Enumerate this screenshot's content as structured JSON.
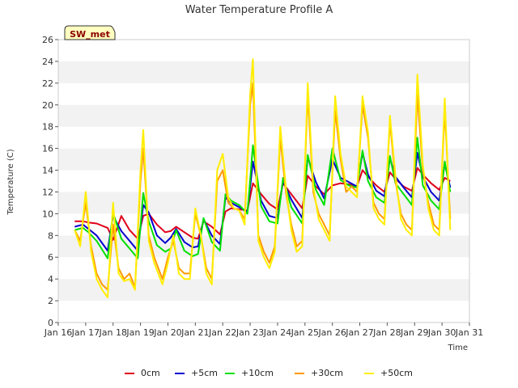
{
  "chart_data": {
    "type": "line",
    "title": "Water Temperature Profile A",
    "xlabel": "Time",
    "ylabel": "Temperature (C)",
    "badge": "SW_met",
    "xlim": [
      16,
      31
    ],
    "ylim": [
      0,
      26
    ],
    "x_ticks": [
      16,
      17,
      18,
      19,
      20,
      21,
      22,
      23,
      24,
      25,
      26,
      27,
      28,
      29,
      30,
      31
    ],
    "x_tick_labels": [
      "Jan 16",
      "Jan 17",
      "Jan 18",
      "Jan 19",
      "Jan 20",
      "Jan 21",
      "Jan 22",
      "Jan 23",
      "Jan 24",
      "Jan 25",
      "Jan 26",
      "Jan 27",
      "Jan 28",
      "Jan 29",
      "Jan 30",
      "Jan 31"
    ],
    "y_ticks": [
      0,
      2,
      4,
      6,
      8,
      10,
      12,
      14,
      16,
      18,
      20,
      22,
      24,
      26
    ],
    "grid": "horizontal alternating bands",
    "legend_position": "bottom",
    "series": [
      {
        "name": "0cm",
        "color": "#e0001a",
        "x": [
          16.6,
          16.9,
          17.1,
          17.4,
          17.8,
          18.0,
          18.3,
          18.6,
          18.9,
          19.1,
          19.3,
          19.6,
          19.9,
          20.1,
          20.3,
          20.6,
          20.9,
          21.1,
          21.3,
          21.6,
          21.9,
          22.1,
          22.3,
          22.6,
          22.9,
          23.1,
          23.4,
          23.7,
          24.0,
          24.2,
          24.5,
          24.9,
          25.1,
          25.4,
          25.7,
          26.0,
          26.3,
          26.6,
          26.9,
          27.1,
          27.3,
          27.6,
          27.9,
          28.1,
          28.3,
          28.6,
          28.9,
          29.1,
          29.3,
          29.6,
          29.9,
          30.1,
          30.3
        ],
        "y": [
          9.3,
          9.3,
          9.2,
          9.1,
          8.7,
          7.6,
          9.8,
          8.5,
          7.7,
          9.8,
          10.0,
          9.0,
          8.3,
          8.4,
          8.8,
          8.3,
          7.8,
          7.7,
          9.3,
          8.8,
          8.1,
          10.2,
          10.5,
          10.4,
          10.3,
          12.8,
          11.8,
          10.9,
          10.4,
          12.8,
          11.8,
          10.5,
          13.5,
          12.5,
          11.8,
          12.6,
          12.8,
          12.7,
          12.5,
          14.0,
          13.4,
          12.6,
          12.0,
          13.8,
          13.2,
          12.5,
          12.1,
          14.2,
          13.6,
          12.8,
          12.2,
          13.3,
          13.0
        ]
      },
      {
        "name": "+5cm",
        "color": "#0000d0",
        "x": [
          16.6,
          16.9,
          17.1,
          17.4,
          17.8,
          18.0,
          18.3,
          18.6,
          18.9,
          19.1,
          19.3,
          19.6,
          19.9,
          20.1,
          20.3,
          20.6,
          20.9,
          21.1,
          21.3,
          21.6,
          21.9,
          22.1,
          22.3,
          22.6,
          22.9,
          23.1,
          23.4,
          23.7,
          24.0,
          24.2,
          24.5,
          24.9,
          25.1,
          25.4,
          25.7,
          26.0,
          26.3,
          26.6,
          26.9,
          27.1,
          27.3,
          27.6,
          27.9,
          28.1,
          28.3,
          28.6,
          28.9,
          29.1,
          29.3,
          29.6,
          29.9,
          30.1,
          30.3
        ],
        "y": [
          8.8,
          9.0,
          8.6,
          8.0,
          6.6,
          9.8,
          8.4,
          7.5,
          6.6,
          10.8,
          10.1,
          8.0,
          7.3,
          7.8,
          8.6,
          7.4,
          6.9,
          7.0,
          9.5,
          8.0,
          7.2,
          11.5,
          11.0,
          10.6,
          10.2,
          14.8,
          11.2,
          9.8,
          9.6,
          13.0,
          11.3,
          9.6,
          15.2,
          12.9,
          11.4,
          15.0,
          13.3,
          12.9,
          12.5,
          15.6,
          13.6,
          12.1,
          11.6,
          15.1,
          13.4,
          12.4,
          11.5,
          15.6,
          13.4,
          12.0,
          11.2,
          14.6,
          12.4
        ]
      },
      {
        "name": "+10cm",
        "color": "#00e000",
        "x": [
          16.6,
          16.9,
          17.1,
          17.4,
          17.8,
          18.0,
          18.3,
          18.6,
          18.9,
          19.1,
          19.3,
          19.6,
          19.9,
          20.1,
          20.3,
          20.6,
          20.9,
          21.1,
          21.3,
          21.6,
          21.9,
          22.1,
          22.3,
          22.6,
          22.9,
          23.1,
          23.4,
          23.7,
          24.0,
          24.2,
          24.5,
          24.9,
          25.1,
          25.4,
          25.7,
          26.0,
          26.3,
          26.6,
          26.9,
          27.1,
          27.3,
          27.6,
          27.9,
          28.1,
          28.3,
          28.6,
          28.9,
          29.1,
          29.3,
          29.6,
          29.9,
          30.1,
          30.3
        ],
        "y": [
          8.5,
          8.7,
          8.3,
          7.5,
          5.9,
          10.1,
          7.7,
          6.8,
          5.9,
          11.9,
          9.3,
          7.1,
          6.5,
          6.8,
          8.5,
          6.6,
          6.1,
          6.3,
          9.6,
          7.4,
          6.6,
          11.8,
          11.2,
          10.8,
          10.0,
          16.3,
          10.7,
          9.3,
          9.1,
          13.3,
          10.6,
          9.1,
          15.4,
          12.2,
          10.8,
          16.0,
          13.1,
          12.6,
          12.4,
          15.8,
          13.0,
          11.5,
          11.0,
          15.3,
          12.8,
          11.8,
          10.8,
          17.0,
          12.6,
          11.2,
          10.4,
          14.8,
          12.0
        ]
      },
      {
        "name": "+30cm",
        "color": "#ff9900",
        "x": [
          16.6,
          16.8,
          17.0,
          17.2,
          17.4,
          17.6,
          17.8,
          18.0,
          18.2,
          18.4,
          18.6,
          18.8,
          19.0,
          19.1,
          19.3,
          19.5,
          19.8,
          20.0,
          20.2,
          20.4,
          20.6,
          20.8,
          21.0,
          21.2,
          21.4,
          21.6,
          21.8,
          22.0,
          22.2,
          22.4,
          22.6,
          22.8,
          23.0,
          23.1,
          23.3,
          23.5,
          23.7,
          23.9,
          24.1,
          24.3,
          24.5,
          24.7,
          24.9,
          25.1,
          25.3,
          25.5,
          25.7,
          25.9,
          26.1,
          26.3,
          26.5,
          26.7,
          26.9,
          27.1,
          27.3,
          27.5,
          27.7,
          27.9,
          28.1,
          28.3,
          28.5,
          28.7,
          28.9,
          29.1,
          29.3,
          29.5,
          29.7,
          29.9,
          30.1,
          30.3
        ],
        "y": [
          8.5,
          7.5,
          11.0,
          7.0,
          4.5,
          3.5,
          3.0,
          9.0,
          5.0,
          4.0,
          4.5,
          3.2,
          13.0,
          16.0,
          8.0,
          6.0,
          4.0,
          6.0,
          7.5,
          5.0,
          4.5,
          4.5,
          10.0,
          8.0,
          5.0,
          4.0,
          13.0,
          14.0,
          11.0,
          10.5,
          10.3,
          9.5,
          20.0,
          22.0,
          8.0,
          6.5,
          5.5,
          7.0,
          17.0,
          12.0,
          9.0,
          7.0,
          7.5,
          21.0,
          12.0,
          10.0,
          9.0,
          8.0,
          19.5,
          15.0,
          12.0,
          12.5,
          12.0,
          20.0,
          17.0,
          11.0,
          10.0,
          9.5,
          18.5,
          13.0,
          10.0,
          9.0,
          8.5,
          21.0,
          14.0,
          11.0,
          9.0,
          8.5,
          19.5,
          9.5
        ]
      },
      {
        "name": "+50cm",
        "color": "#ffee00",
        "x": [
          16.6,
          16.8,
          17.0,
          17.2,
          17.4,
          17.6,
          17.8,
          18.0,
          18.2,
          18.4,
          18.6,
          18.8,
          19.0,
          19.1,
          19.3,
          19.5,
          19.8,
          20.0,
          20.2,
          20.4,
          20.6,
          20.8,
          21.0,
          21.2,
          21.4,
          21.6,
          21.8,
          22.0,
          22.2,
          22.4,
          22.6,
          22.8,
          23.0,
          23.1,
          23.3,
          23.5,
          23.7,
          23.9,
          24.1,
          24.3,
          24.5,
          24.7,
          24.9,
          25.1,
          25.3,
          25.5,
          25.7,
          25.9,
          26.1,
          26.3,
          26.5,
          26.7,
          26.9,
          27.1,
          27.3,
          27.5,
          27.7,
          27.9,
          28.1,
          28.3,
          28.5,
          28.7,
          28.9,
          29.1,
          29.3,
          29.5,
          29.7,
          29.9,
          30.1,
          30.3
        ],
        "y": [
          8.5,
          7.0,
          12.0,
          6.5,
          4.0,
          3.0,
          2.3,
          11.0,
          4.5,
          3.8,
          4.0,
          3.0,
          14.0,
          17.7,
          7.5,
          5.5,
          3.5,
          5.5,
          8.0,
          4.5,
          4.0,
          4.0,
          10.5,
          8.0,
          4.5,
          3.5,
          14.0,
          15.5,
          11.5,
          10.5,
          10.3,
          9.0,
          21.0,
          24.2,
          7.5,
          6.0,
          5.0,
          6.5,
          18.0,
          12.5,
          8.5,
          6.5,
          7.0,
          22.0,
          12.5,
          9.5,
          8.5,
          7.5,
          20.8,
          15.5,
          12.5,
          12.0,
          11.5,
          20.8,
          17.5,
          10.5,
          9.5,
          9.0,
          19.0,
          13.5,
          9.5,
          8.5,
          8.0,
          22.8,
          14.5,
          10.5,
          8.5,
          8.0,
          20.6,
          8.5
        ]
      }
    ]
  }
}
